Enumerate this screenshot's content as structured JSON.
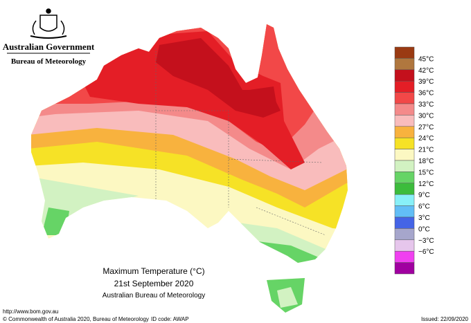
{
  "header": {
    "government": "Australian Government",
    "agency": "Bureau of Meteorology"
  },
  "map": {
    "title": "Maximum Temperature (°C)",
    "date": "21st September 2020",
    "source": "Australian Bureau of Meteorology"
  },
  "legend": {
    "colors": [
      "#9a3a12",
      "#b0773e",
      "#c4101c",
      "#e41e26",
      "#f24848",
      "#f48a8a",
      "#f9bcbc",
      "#f8b23e",
      "#f6e226",
      "#fcf8c2",
      "#d2f2c2",
      "#66d466",
      "#3cbc3c",
      "#88f0f8",
      "#62bef6",
      "#4464e6",
      "#a6a6cc",
      "#e6c6ec",
      "#f040f0",
      "#a000a0"
    ],
    "labels": [
      "45°C",
      "42°C",
      "39°C",
      "36°C",
      "33°C",
      "30°C",
      "27°C",
      "24°C",
      "21°C",
      "18°C",
      "15°C",
      "12°C",
      "9°C",
      "6°C",
      "3°C",
      "0°C",
      "−3°C",
      "−6°C"
    ]
  },
  "footer": {
    "url": "http://www.bom.gov.au",
    "copyright": "© Commonwealth of Australia 2020, Bureau of Meteorology",
    "id_code": "ID code: AWAP",
    "issued": "Issued: 22/09/2020"
  }
}
